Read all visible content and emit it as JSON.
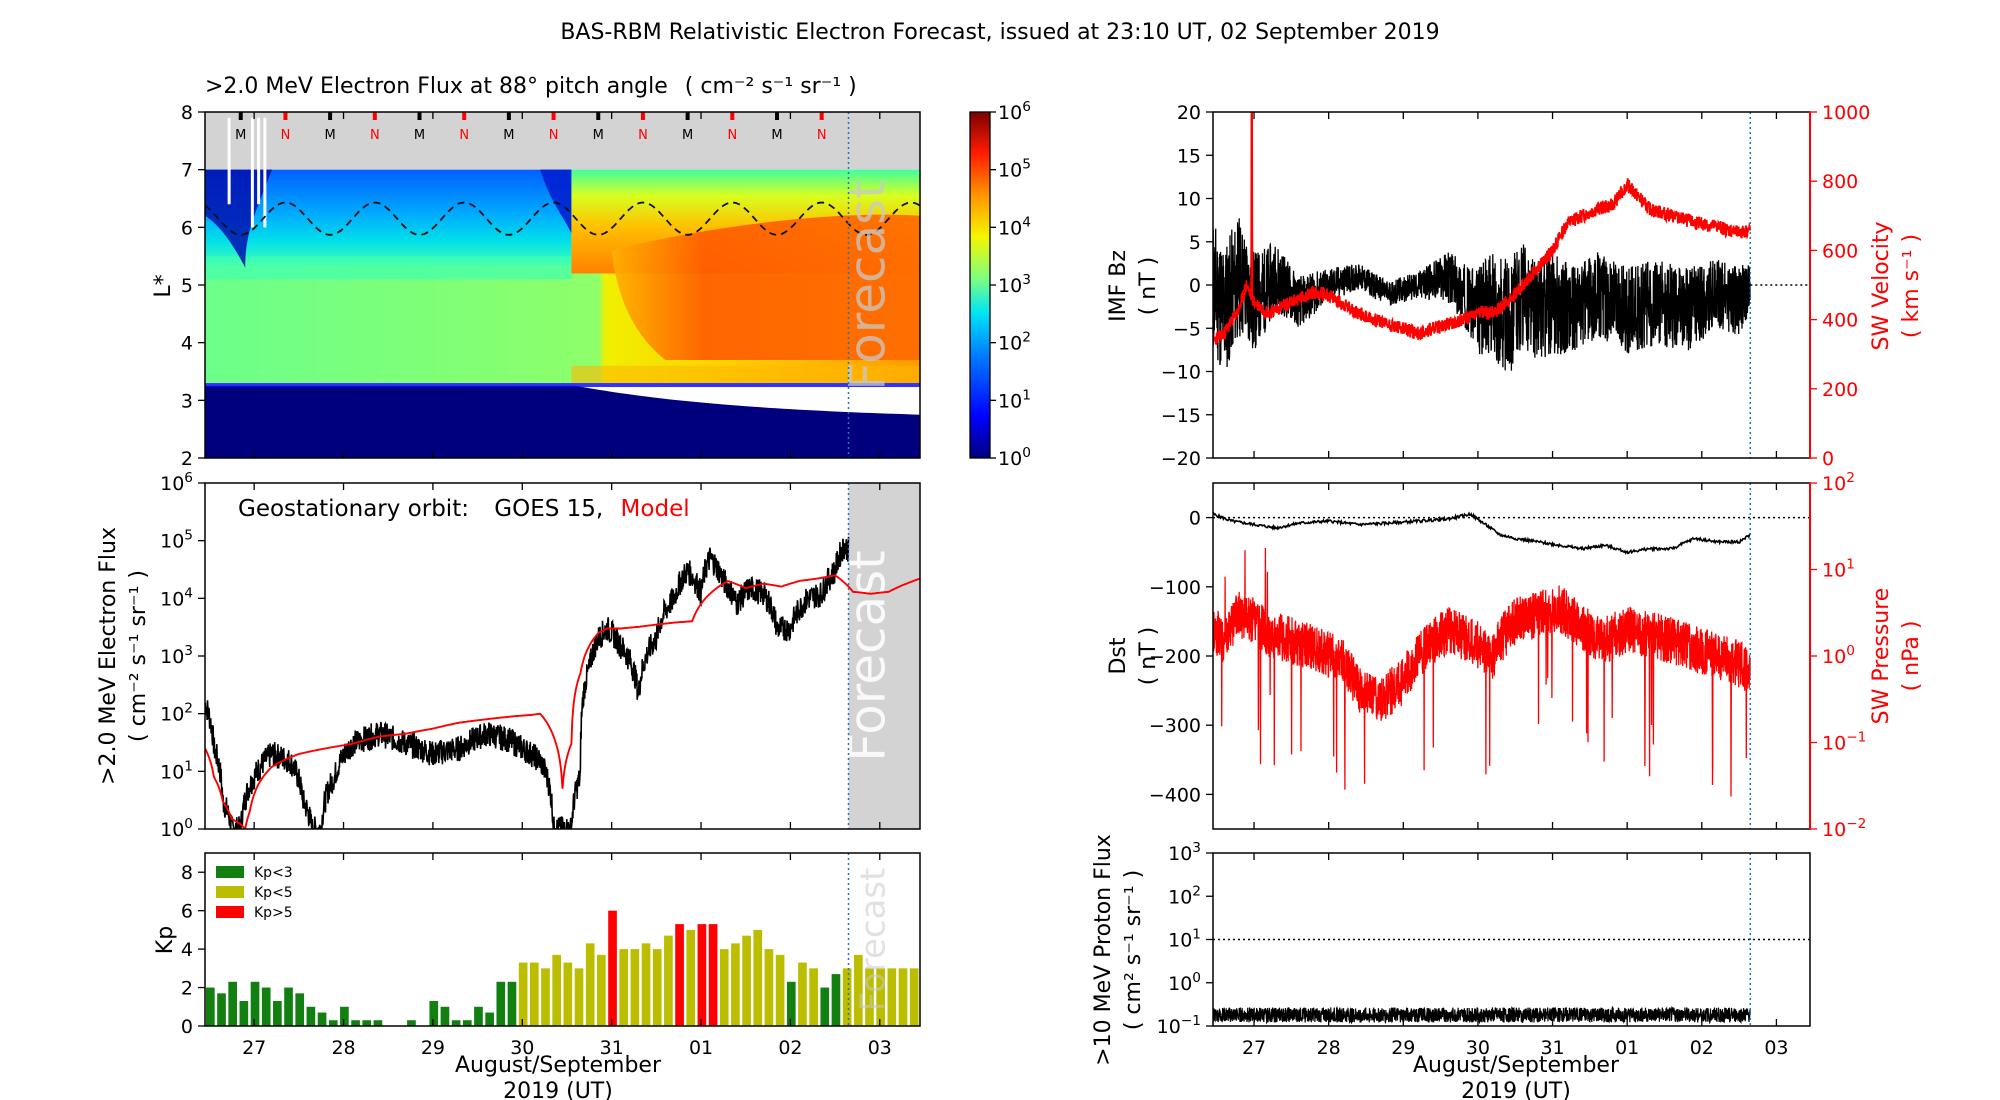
{
  "title": "BAS-RBM Relativistic Electron Forecast, issued at 23:10 UT, 02 September 2019",
  "shared_axis": {
    "tick_labels": [
      "27",
      "28",
      "29",
      "30",
      "31",
      "01",
      "02",
      "03"
    ],
    "tick_days": [
      1,
      2,
      3,
      4,
      5,
      6,
      7,
      8
    ],
    "xlabel": "August/September",
    "xlabel2": "2019 (UT)",
    "forecast_start_day": 7.65,
    "xlim": [
      0.45,
      8.45
    ]
  },
  "legend_labels": {
    "geo_prefix": "Geostationary orbit:",
    "geo_sat": "GOES 15,",
    "geo_model": "Model",
    "kp_low": "Kp<3",
    "kp_mid": "Kp<5",
    "kp_high": "Kp>5"
  },
  "forecast_label": "Forecast",
  "colors": {
    "kp_low": "#118011",
    "kp_mid": "#bdbd00",
    "kp_high": "#ff0000",
    "model": "#ff0000",
    "solar_wind": "#ff0000",
    "forecast_vline": "#1f77b4",
    "forecast_shade": "#d3d3d3"
  },
  "chart_data": [
    {
      "id": "flux_map",
      "type": "heatmap",
      "title": ">2.0 MeV Electron Flux at 88° pitch angle",
      "title_unit": "( cm⁻² s⁻¹ sr⁻¹ )",
      "ylabel": "L*",
      "ylim": [
        2,
        8
      ],
      "yticks": [
        2,
        3,
        4,
        5,
        6,
        7,
        8
      ],
      "colorbar": {
        "scale": "log",
        "range": [
          0,
          6
        ],
        "tick_exponents": [
          0,
          1,
          2,
          3,
          4,
          5,
          6
        ]
      },
      "orbit_markers": {
        "labels": [
          "M",
          "N",
          "M",
          "N",
          "M",
          "N",
          "M",
          "N",
          "M",
          "N",
          "M",
          "N",
          "M",
          "N"
        ],
        "days": [
          0.85,
          1.35,
          1.85,
          2.35,
          2.85,
          3.35,
          3.85,
          4.35,
          4.85,
          5.35,
          5.85,
          6.35,
          6.85,
          7.35
        ]
      },
      "dashed_line": {
        "description": "GOES orbit L*",
        "mean": 6.15,
        "amplitude": 0.28
      }
    },
    {
      "id": "geo_flux",
      "type": "line",
      "ylabel": ">2.0 MeV Electron Flux",
      "ylabel_unit": "( cm⁻² s⁻¹ sr⁻¹ )",
      "yscale": "log",
      "ylim_exponents": [
        0,
        6
      ],
      "series": [
        {
          "name": "GOES 15",
          "color": "#000000",
          "x": [
            0.45,
            0.55,
            0.65,
            0.75,
            0.85,
            1.0,
            1.2,
            1.4,
            1.55,
            1.65,
            1.75,
            1.9,
            2.1,
            2.4,
            2.7,
            3.0,
            3.3,
            3.6,
            3.85,
            4.0,
            4.2,
            4.35,
            4.5,
            4.55,
            4.65,
            4.75,
            4.85,
            4.95,
            5.1,
            5.3,
            5.5,
            5.7,
            5.85,
            6.0,
            6.1,
            6.25,
            6.4,
            6.55,
            6.7,
            6.85,
            7.0,
            7.2,
            7.35,
            7.5,
            7.6,
            7.65
          ],
          "y": [
            150,
            25,
            3,
            1,
            1,
            8,
            20,
            15,
            3,
            1,
            1,
            8,
            30,
            45,
            30,
            20,
            25,
            45,
            35,
            25,
            15,
            1,
            1,
            1,
            8,
            600,
            2000,
            3000,
            1500,
            200,
            2000,
            10000,
            30000,
            12000,
            50000,
            20000,
            8000,
            15000,
            12000,
            3000,
            3000,
            10000,
            12000,
            30000,
            80000,
            70000
          ]
        },
        {
          "name": "Model",
          "color": "#ff0000",
          "x": [
            0.45,
            0.55,
            0.65,
            0.75,
            0.85,
            0.9,
            0.95,
            1.0,
            1.2,
            1.5,
            1.8,
            2.1,
            2.4,
            2.7,
            3.0,
            3.3,
            3.6,
            3.9,
            4.1,
            4.2,
            4.35,
            4.45,
            4.55,
            4.65,
            4.75,
            4.85,
            4.95,
            5.1,
            5.3,
            5.5,
            5.7,
            5.9,
            6.1,
            6.3,
            6.5,
            6.7,
            6.9,
            7.1,
            7.3,
            7.5,
            7.7,
            7.9,
            8.1,
            8.3,
            8.45
          ],
          "y": [
            25,
            8,
            3,
            1.5,
            1.2,
            1,
            2,
            4,
            12,
            20,
            25,
            30,
            40,
            45,
            55,
            70,
            80,
            90,
            95,
            100,
            40,
            5,
            30,
            500,
            1500,
            2500,
            3000,
            3000,
            3200,
            3500,
            3800,
            4000,
            12000,
            20000,
            15000,
            18000,
            16000,
            20000,
            22000,
            25000,
            13000,
            12000,
            13000,
            18000,
            22000
          ]
        }
      ]
    },
    {
      "id": "kp",
      "type": "bar",
      "ylabel": "Kp",
      "ylim": [
        0,
        9
      ],
      "yticks": [
        0,
        2,
        4,
        6,
        8
      ],
      "bar_start_day": 0.45,
      "bar_width_days": 0.125,
      "values": [
        2.0,
        1.7,
        2.3,
        1.3,
        2.3,
        2.0,
        1.3,
        2.0,
        1.7,
        1.0,
        0.7,
        0.3,
        1.0,
        0.3,
        0.3,
        0.3,
        0.0,
        0.0,
        0.3,
        0.0,
        1.3,
        1.0,
        0.3,
        0.3,
        1.0,
        0.7,
        2.3,
        2.3,
        3.3,
        3.3,
        3.0,
        3.7,
        3.3,
        3.0,
        4.3,
        3.7,
        6.0,
        4.0,
        4.0,
        4.3,
        4.0,
        4.7,
        5.3,
        5.0,
        5.3,
        5.3,
        4.0,
        4.3,
        4.7,
        5.0,
        4.0,
        3.7,
        2.3,
        3.3,
        3.0,
        2.0,
        2.7,
        3.0,
        3.7,
        3.0,
        3.0,
        3.0,
        3.0,
        3.0
      ]
    },
    {
      "id": "imf_sw",
      "type": "line",
      "ylabel": "IMF Bz",
      "ylabel_unit": "( nT )",
      "ylim": [
        -20,
        20
      ],
      "yticks": [
        -20,
        -15,
        -10,
        -5,
        0,
        5,
        10,
        15,
        20
      ],
      "ylabel_right": "SW Velocity",
      "ylabel_right_unit": "( km s⁻¹ )",
      "ylim_right": [
        0,
        1000
      ],
      "yticks_right": [
        0,
        200,
        400,
        600,
        800,
        1000
      ],
      "series": [
        {
          "name": "IMF Bz",
          "color": "#000000",
          "x": [
            0.45,
            0.6,
            0.8,
            1.0,
            1.3,
            1.6,
            2.0,
            2.4,
            2.8,
            3.2,
            3.6,
            3.9,
            4.0,
            4.2,
            4.4,
            4.6,
            4.8,
            5.0,
            5.3,
            5.6,
            6.0,
            6.4,
            6.8,
            7.2,
            7.5,
            7.65
          ],
          "y": [
            0,
            -3,
            1,
            -2,
            1,
            -2,
            0,
            1,
            -1,
            0,
            1,
            -2,
            -3,
            -2,
            -4,
            -1,
            -3,
            -2,
            -3,
            -1,
            -3,
            -2,
            -3,
            -1,
            -2,
            0
          ],
          "spread": [
            8,
            8,
            7,
            6,
            4,
            3,
            2,
            1.5,
            1.5,
            1.5,
            3,
            4,
            5,
            6,
            7,
            6,
            6,
            6,
            5,
            5,
            5,
            5,
            5,
            4,
            4,
            3
          ]
        },
        {
          "name": "SW Velocity",
          "color": "#ff0000",
          "x": [
            0.45,
            0.6,
            0.8,
            0.9,
            1.0,
            1.2,
            1.5,
            1.8,
            2.0,
            2.3,
            2.6,
            2.9,
            3.2,
            3.5,
            3.8,
            4.0,
            4.2,
            4.4,
            4.6,
            4.8,
            5.0,
            5.2,
            5.4,
            5.6,
            5.8,
            6.0,
            6.3,
            6.6,
            6.9,
            7.2,
            7.5,
            7.65
          ],
          "y": [
            340,
            360,
            430,
            500,
            450,
            420,
            450,
            480,
            470,
            430,
            400,
            380,
            360,
            380,
            400,
            420,
            420,
            450,
            500,
            550,
            600,
            680,
            700,
            720,
            730,
            790,
            720,
            700,
            680,
            670,
            650,
            660
          ],
          "spike": {
            "x": 0.97,
            "y": 1000
          }
        }
      ]
    },
    {
      "id": "dst_pressure",
      "type": "line",
      "ylabel": "Dst",
      "ylabel_unit": "( nT )",
      "ylim": [
        -450,
        50
      ],
      "yticks": [
        0,
        -100,
        -200,
        -300,
        -400
      ],
      "ylabel_right": "SW Pressure",
      "ylabel_right_unit": "( nPa )",
      "yscale_right": "log",
      "ylim_right_exponents": [
        -2,
        2
      ],
      "series": [
        {
          "name": "Dst",
          "color": "#000000",
          "x": [
            0.45,
            0.7,
            1.0,
            1.3,
            1.6,
            2.0,
            2.4,
            2.8,
            3.2,
            3.6,
            3.9,
            4.1,
            4.3,
            4.5,
            4.8,
            5.1,
            5.4,
            5.7,
            6.0,
            6.3,
            6.6,
            6.9,
            7.2,
            7.5,
            7.65
          ],
          "y": [
            5,
            -5,
            -10,
            -15,
            -8,
            -5,
            -10,
            -8,
            -5,
            -2,
            5,
            -10,
            -25,
            -30,
            -35,
            -40,
            -45,
            -40,
            -50,
            -45,
            -45,
            -30,
            -35,
            -35,
            -25
          ]
        },
        {
          "name": "SW Pressure",
          "color": "#ff0000",
          "x": [
            0.45,
            0.6,
            0.8,
            1.0,
            1.2,
            1.5,
            1.8,
            2.1,
            2.4,
            2.7,
            3.0,
            3.3,
            3.6,
            3.9,
            4.2,
            4.5,
            4.8,
            5.1,
            5.4,
            5.7,
            6.0,
            6.3,
            6.6,
            6.9,
            7.2,
            7.5,
            7.65
          ],
          "y": [
            2.0,
            1.5,
            3.0,
            2.5,
            1.8,
            1.5,
            1.2,
            1.0,
            0.4,
            0.3,
            0.5,
            1.2,
            2.0,
            1.5,
            1.0,
            2.5,
            3.0,
            3.5,
            2.0,
            1.5,
            2.0,
            1.8,
            1.5,
            1.2,
            1.0,
            0.8,
            0.7
          ]
        }
      ]
    },
    {
      "id": "proton_flux",
      "type": "line",
      "ylabel": ">10 MeV Proton Flux",
      "ylabel_unit": "( cm² s⁻¹ sr⁻¹ )",
      "yscale": "log",
      "ylim_exponents": [
        -1,
        3
      ],
      "threshold": 10,
      "series": [
        {
          "name": ">10 MeV Proton Flux",
          "color": "#000000",
          "level": 0.18,
          "x_end": 7.65
        }
      ]
    }
  ]
}
